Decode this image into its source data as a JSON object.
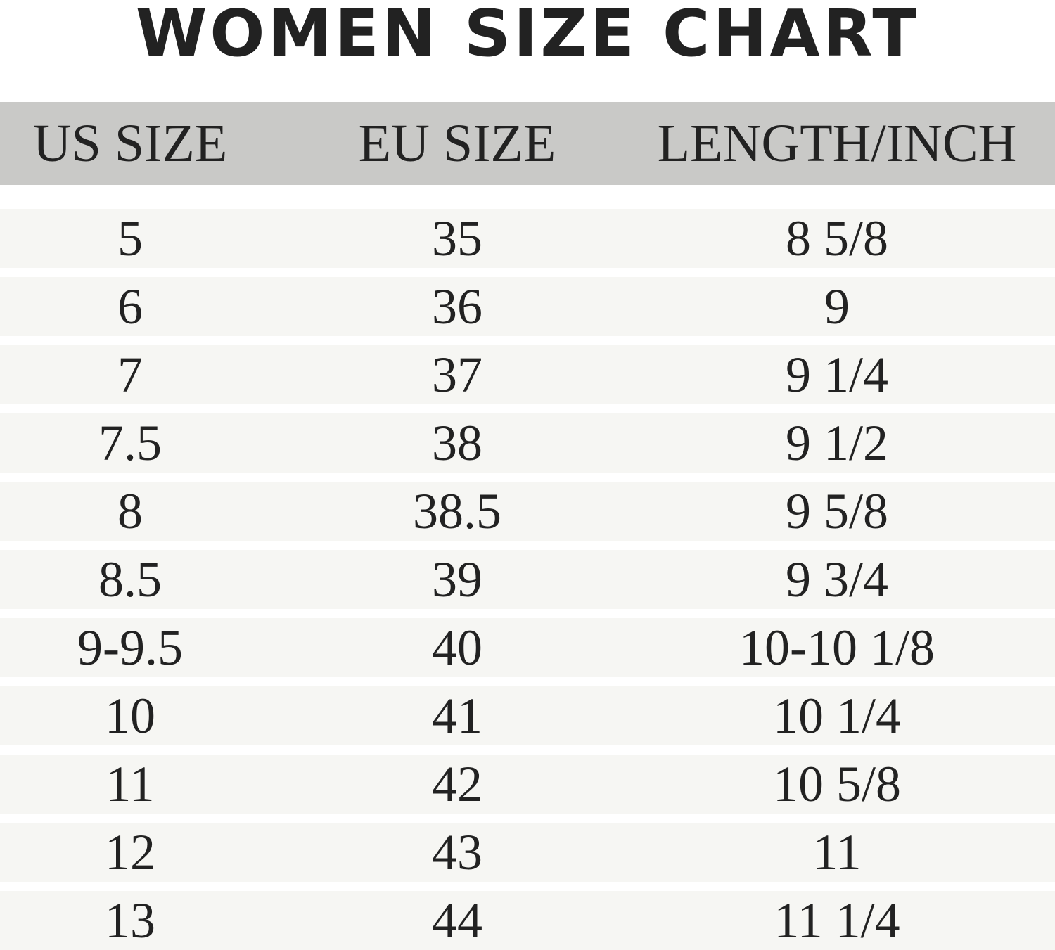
{
  "title": "WOMEN SIZE CHART",
  "table": {
    "header": [
      "US SIZE",
      "EU SIZE",
      "LENGTH/INCH"
    ],
    "rows": [
      [
        "5",
        "35",
        "8 5/8"
      ],
      [
        "6",
        "36",
        "9"
      ],
      [
        "7",
        "37",
        "9 1/4"
      ],
      [
        "7.5",
        "38",
        "9 1/2"
      ],
      [
        "8",
        "38.5",
        "9 5/8"
      ],
      [
        "8.5",
        "39",
        "9 3/4"
      ],
      [
        "9-9.5",
        "40",
        "10-10 1/8"
      ],
      [
        "10",
        "41",
        "10 1/4"
      ],
      [
        "11",
        "42",
        "10 5/8"
      ],
      [
        "12",
        "43",
        "11"
      ],
      [
        "13",
        "44",
        "11 1/4"
      ]
    ]
  }
}
